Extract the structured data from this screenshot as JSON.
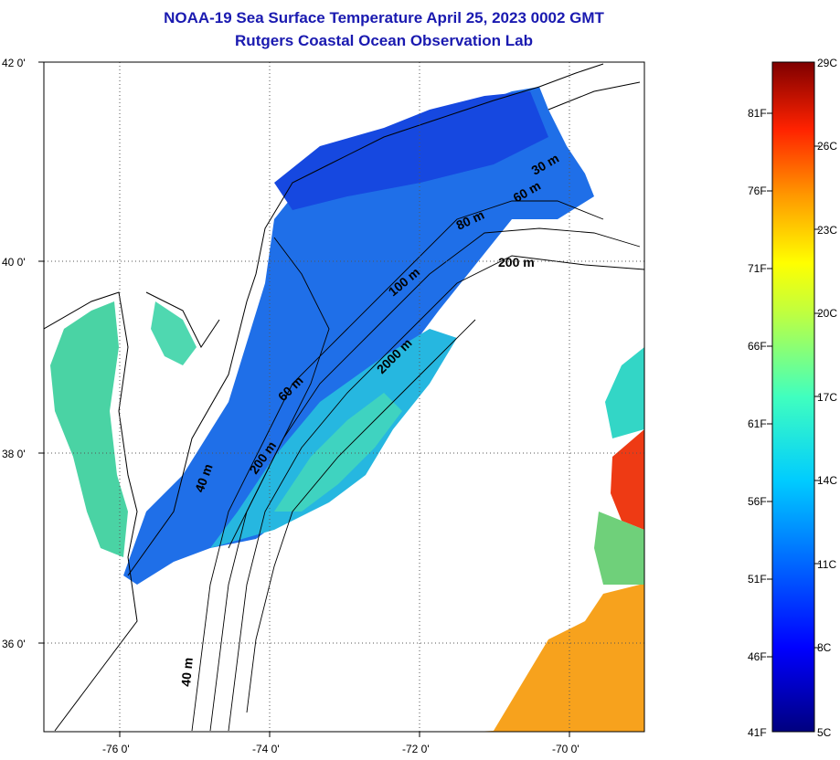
{
  "title": {
    "line1": "NOAA-19 Sea Surface Temperature April 25, 2023 0002 GMT",
    "line2": "Rutgers Coastal Ocean Observation Lab"
  },
  "map": {
    "lat_ticks": [
      "42 0'",
      "40 0'",
      "38 0'",
      "36 0'"
    ],
    "lon_ticks": [
      "-76 0'",
      "-74 0'",
      "-72 0'",
      "-70 0'"
    ],
    "lat_range": [
      35,
      42
    ],
    "lon_range": [
      -77,
      -69
    ],
    "contour_labels": [
      "30 m",
      "60 m",
      "80 m",
      "200 m",
      "100 m",
      "2000 m",
      "60 m",
      "200 m",
      "40 m",
      "40 m"
    ]
  },
  "colorbar": {
    "celsius_labels": [
      "29C",
      "26C",
      "23C",
      "20C",
      "17C",
      "14C",
      "11C",
      "8C",
      "5C"
    ],
    "fahrenheit_labels": [
      "81F",
      "76F",
      "71F",
      "66F",
      "61F",
      "56F",
      "51F",
      "46F",
      "41F"
    ],
    "range_c": [
      5,
      29
    ],
    "colors": [
      "#00007f",
      "#0000ff",
      "#0080ff",
      "#00ffff",
      "#80ff80",
      "#ffff00",
      "#ff8000",
      "#ff0000",
      "#7f0000"
    ]
  }
}
